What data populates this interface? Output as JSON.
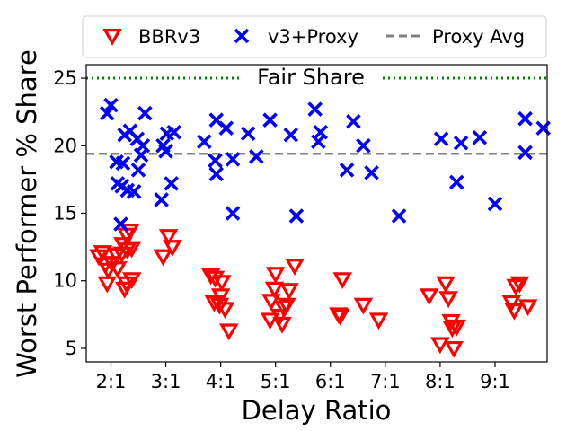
{
  "chart_data": {
    "type": "scatter",
    "xlabel": "Delay Ratio",
    "ylabel": "Worst Performer % Share",
    "x_ticks": [
      "2:1",
      "3:1",
      "4:1",
      "5:1",
      "6:1",
      "7:1",
      "8:1",
      "9:1"
    ],
    "xlim": [
      1.55,
      9.95
    ],
    "ylim": [
      4,
      26
    ],
    "y_ticks": [
      5,
      10,
      15,
      20,
      25
    ],
    "grid": false,
    "legend_placement": "top",
    "reference_lines": [
      {
        "name": "fair-share-line",
        "y": 25,
        "label": "Fair Share",
        "color": "#008000",
        "style": "dotted"
      },
      {
        "name": "proxy-avg-line",
        "y": 19.4,
        "label": "Proxy Avg",
        "color": "#808080",
        "style": "dashed"
      }
    ],
    "series": [
      {
        "name": "BBRv3",
        "marker": "triangle-down-open",
        "color": "#ff0000",
        "points": [
          {
            "x": 1.85,
            "y": 12.1
          },
          {
            "x": 1.78,
            "y": 11.8
          },
          {
            "x": 1.9,
            "y": 11.2
          },
          {
            "x": 1.95,
            "y": 10.8
          },
          {
            "x": 1.93,
            "y": 9.8
          },
          {
            "x": 2.02,
            "y": 11.3
          },
          {
            "x": 2.1,
            "y": 11.9
          },
          {
            "x": 2.12,
            "y": 10.9
          },
          {
            "x": 2.2,
            "y": 12.0
          },
          {
            "x": 2.22,
            "y": 12.7
          },
          {
            "x": 2.28,
            "y": 13.4
          },
          {
            "x": 2.3,
            "y": 12.3
          },
          {
            "x": 2.35,
            "y": 13.7
          },
          {
            "x": 2.38,
            "y": 12.4
          },
          {
            "x": 2.25,
            "y": 9.4
          },
          {
            "x": 2.28,
            "y": 9.8
          },
          {
            "x": 2.38,
            "y": 10.1
          },
          {
            "x": 2.95,
            "y": 11.8
          },
          {
            "x": 3.05,
            "y": 13.3
          },
          {
            "x": 3.12,
            "y": 12.5
          },
          {
            "x": 3.82,
            "y": 10.4
          },
          {
            "x": 3.9,
            "y": 10.2
          },
          {
            "x": 3.88,
            "y": 8.4
          },
          {
            "x": 3.98,
            "y": 8.2
          },
          {
            "x": 4.02,
            "y": 9.9
          },
          {
            "x": 4.0,
            "y": 8.9
          },
          {
            "x": 4.08,
            "y": 7.9
          },
          {
            "x": 4.15,
            "y": 6.3
          },
          {
            "x": 4.9,
            "y": 7.1
          },
          {
            "x": 4.92,
            "y": 8.5
          },
          {
            "x": 4.98,
            "y": 9.4
          },
          {
            "x": 5.0,
            "y": 10.5
          },
          {
            "x": 5.08,
            "y": 7.4
          },
          {
            "x": 5.12,
            "y": 6.8
          },
          {
            "x": 5.15,
            "y": 8.0
          },
          {
            "x": 5.2,
            "y": 8.2
          },
          {
            "x": 5.25,
            "y": 9.3
          },
          {
            "x": 5.35,
            "y": 11.1
          },
          {
            "x": 6.15,
            "y": 7.5
          },
          {
            "x": 6.18,
            "y": 7.4
          },
          {
            "x": 6.22,
            "y": 10.1
          },
          {
            "x": 6.6,
            "y": 8.2
          },
          {
            "x": 6.88,
            "y": 7.1
          },
          {
            "x": 7.8,
            "y": 8.9
          },
          {
            "x": 8.0,
            "y": 5.3
          },
          {
            "x": 8.1,
            "y": 9.8
          },
          {
            "x": 8.15,
            "y": 8.7
          },
          {
            "x": 8.2,
            "y": 7.0
          },
          {
            "x": 8.22,
            "y": 6.5
          },
          {
            "x": 8.25,
            "y": 5.0
          },
          {
            "x": 8.3,
            "y": 6.6
          },
          {
            "x": 9.3,
            "y": 8.4
          },
          {
            "x": 9.35,
            "y": 7.8
          },
          {
            "x": 9.38,
            "y": 9.6
          },
          {
            "x": 9.45,
            "y": 9.8
          },
          {
            "x": 9.6,
            "y": 8.1
          }
        ]
      },
      {
        "name": "v3+Proxy",
        "marker": "x",
        "color": "#0000ff",
        "points": [
          {
            "x": 1.93,
            "y": 22.4
          },
          {
            "x": 2.0,
            "y": 23.0
          },
          {
            "x": 2.1,
            "y": 18.8
          },
          {
            "x": 2.12,
            "y": 17.2
          },
          {
            "x": 2.18,
            "y": 14.2
          },
          {
            "x": 2.2,
            "y": 17.0
          },
          {
            "x": 2.22,
            "y": 18.7
          },
          {
            "x": 2.25,
            "y": 20.8
          },
          {
            "x": 2.3,
            "y": 16.7
          },
          {
            "x": 2.35,
            "y": 21.1
          },
          {
            "x": 2.42,
            "y": 16.6
          },
          {
            "x": 2.48,
            "y": 20.5
          },
          {
            "x": 2.5,
            "y": 18.2
          },
          {
            "x": 2.55,
            "y": 19.3
          },
          {
            "x": 2.58,
            "y": 20.0
          },
          {
            "x": 2.62,
            "y": 22.4
          },
          {
            "x": 2.92,
            "y": 16.0
          },
          {
            "x": 2.95,
            "y": 20.0
          },
          {
            "x": 3.0,
            "y": 19.6
          },
          {
            "x": 3.02,
            "y": 20.9
          },
          {
            "x": 3.1,
            "y": 17.2
          },
          {
            "x": 3.15,
            "y": 21.0
          },
          {
            "x": 3.7,
            "y": 20.3
          },
          {
            "x": 3.92,
            "y": 21.9
          },
          {
            "x": 3.9,
            "y": 18.9
          },
          {
            "x": 3.92,
            "y": 17.9
          },
          {
            "x": 4.1,
            "y": 21.3
          },
          {
            "x": 4.22,
            "y": 19.0
          },
          {
            "x": 4.22,
            "y": 15.0
          },
          {
            "x": 4.5,
            "y": 20.9
          },
          {
            "x": 4.65,
            "y": 19.2
          },
          {
            "x": 4.9,
            "y": 21.9
          },
          {
            "x": 5.28,
            "y": 20.8
          },
          {
            "x": 5.38,
            "y": 14.8
          },
          {
            "x": 5.72,
            "y": 22.7
          },
          {
            "x": 5.78,
            "y": 20.3
          },
          {
            "x": 5.82,
            "y": 21.0
          },
          {
            "x": 6.3,
            "y": 18.2
          },
          {
            "x": 6.42,
            "y": 21.8
          },
          {
            "x": 6.6,
            "y": 20.0
          },
          {
            "x": 6.75,
            "y": 18.0
          },
          {
            "x": 7.25,
            "y": 14.8
          },
          {
            "x": 8.02,
            "y": 20.5
          },
          {
            "x": 8.3,
            "y": 17.3
          },
          {
            "x": 8.38,
            "y": 20.2
          },
          {
            "x": 8.72,
            "y": 20.6
          },
          {
            "x": 9.0,
            "y": 15.7
          },
          {
            "x": 9.55,
            "y": 22.0
          },
          {
            "x": 9.55,
            "y": 19.5
          },
          {
            "x": 9.88,
            "y": 21.3
          }
        ]
      }
    ]
  }
}
